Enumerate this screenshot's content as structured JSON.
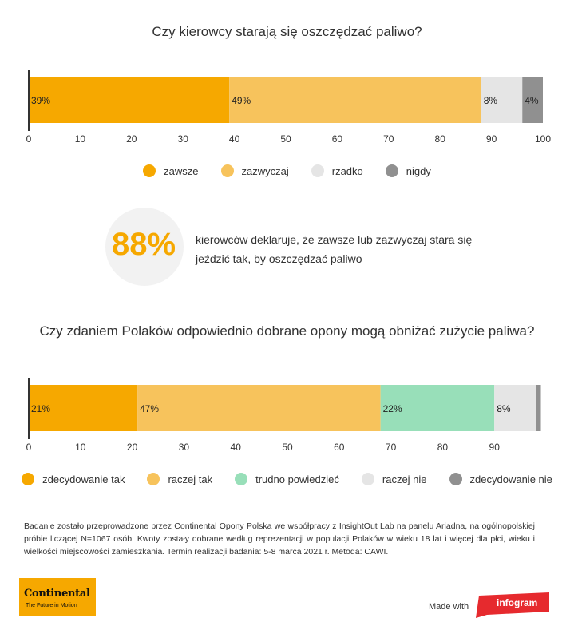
{
  "chart_data": [
    {
      "type": "stacked-bar-horizontal",
      "title": "Czy kierowcy starają się oszczędzać paliwo?",
      "series": [
        {
          "name": "zawsze",
          "value": 39,
          "label": "39%",
          "color": "#f6a800"
        },
        {
          "name": "zazwyczaj",
          "value": 49,
          "label": "49%",
          "color": "#f7c35c"
        },
        {
          "name": "rzadko",
          "value": 8,
          "label": "8%",
          "color": "#e5e5e5"
        },
        {
          "name": "nigdy",
          "value": 4,
          "label": "4%",
          "color": "#909090"
        }
      ],
      "x_ticks": [
        "0",
        "10",
        "20",
        "30",
        "40",
        "50",
        "60",
        "70",
        "80",
        "90",
        "100"
      ],
      "xlim": [
        0,
        100
      ],
      "legend_position": "bottom"
    },
    {
      "type": "stacked-bar-horizontal",
      "title": "Czy zdaniem Polaków odpowiednio dobrane opony mogą obniżać zużycie paliwa?",
      "series": [
        {
          "name": "zdecydowanie tak",
          "value": 21,
          "label": "21%",
          "color": "#f6a800"
        },
        {
          "name": "raczej tak",
          "value": 47,
          "label": "47%",
          "color": "#f7c35c"
        },
        {
          "name": "trudno powiedzieć",
          "value": 22,
          "label": "22%",
          "color": "#98dfb9"
        },
        {
          "name": "raczej nie",
          "value": 8,
          "label": "8%",
          "color": "#e5e5e5"
        },
        {
          "name": "zdecydowanie nie",
          "value": 1,
          "label": "",
          "color": "#909090"
        }
      ],
      "x_ticks": [
        "0",
        "10",
        "20",
        "30",
        "40",
        "50",
        "60",
        "70",
        "80",
        "90"
      ],
      "xlim": [
        0,
        99
      ],
      "legend_position": "bottom"
    }
  ],
  "highlight": {
    "value": "88%",
    "text": "kierowców deklaruje, że zawsze lub zazwyczaj stara się jeździć tak, by oszczędzać paliwo",
    "accent_color": "#f6a800"
  },
  "footnote": "Badanie zostało przeprowadzone przez Continental Opony Polska we współpracy z InsightOut Lab na panelu Ariadna, na ogólnopolskiej próbie liczącej N=1067 osób. Kwoty zostały dobrane według reprezentacji w populacji Polaków w wieku 18 lat i więcej dla płci, wieku i wielkości miejscowości zamieszkania. Termin realizacji badania: 5-8 marca 2021 r. Metoda: CAWI.",
  "brand": {
    "name": "Continental",
    "tagline": "The Future in Motion"
  },
  "footer": {
    "made_with": "Made with",
    "infogram": "infogram"
  }
}
